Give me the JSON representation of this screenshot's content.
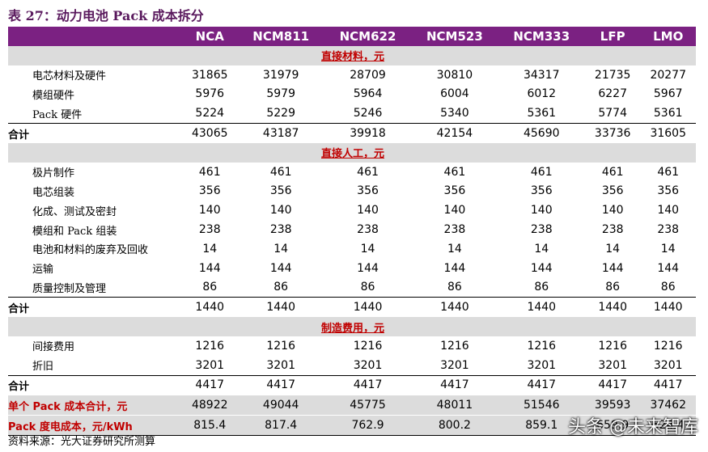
{
  "title": "表 27：动力电池 Pack 成本拆分",
  "table": {
    "columns": [
      "NCA",
      "NCM811",
      "NCM622",
      "NCM523",
      "NCM333",
      "LFP",
      "LMO"
    ],
    "sections": [
      {
        "title": "直接材料，元",
        "rows": [
          {
            "label": "电芯材料及硬件",
            "values": [
              31865,
              31979,
              28709,
              30810,
              34317,
              21735,
              20277
            ]
          },
          {
            "label": "模组硬件",
            "values": [
              5976,
              5979,
              5964,
              6004,
              6012,
              6227,
              5967
            ]
          },
          {
            "label": "Pack 硬件",
            "values": [
              5224,
              5229,
              5246,
              5340,
              5361,
              5774,
              5361
            ]
          }
        ],
        "total": {
          "label": "合计",
          "values": [
            43065,
            43187,
            39918,
            42154,
            45690,
            33736,
            31605
          ]
        }
      },
      {
        "title": "直接人工，元",
        "rows": [
          {
            "label": "极片制作",
            "values": [
              461,
              461,
              461,
              461,
              461,
              461,
              461
            ]
          },
          {
            "label": "电芯组装",
            "values": [
              356,
              356,
              356,
              356,
              356,
              356,
              356
            ]
          },
          {
            "label": "化成、测试及密封",
            "values": [
              140,
              140,
              140,
              140,
              140,
              140,
              140
            ]
          },
          {
            "label": "模组和 Pack 组装",
            "values": [
              238,
              238,
              238,
              238,
              238,
              238,
              238
            ]
          },
          {
            "label": "电池和材料的废弃及回收",
            "values": [
              14,
              14,
              14,
              14,
              14,
              14,
              14
            ]
          },
          {
            "label": "运输",
            "values": [
              144,
              144,
              144,
              144,
              144,
              144,
              144
            ]
          },
          {
            "label": "质量控制及管理",
            "values": [
              86,
              86,
              86,
              86,
              86,
              86,
              86
            ]
          }
        ],
        "total": {
          "label": "合计",
          "values": [
            1440,
            1440,
            1440,
            1440,
            1440,
            1440,
            1440
          ]
        }
      },
      {
        "title": "制造费用，元",
        "rows": [
          {
            "label": "间接费用",
            "values": [
              1216,
              1216,
              1216,
              1216,
              1216,
              1216,
              1216
            ]
          },
          {
            "label": "折旧",
            "values": [
              3201,
              3201,
              3201,
              3201,
              3201,
              3201,
              3201
            ]
          }
        ],
        "total": {
          "label": "合计",
          "values": [
            4417,
            4417,
            4417,
            4417,
            4417,
            4417,
            4417
          ]
        }
      }
    ],
    "summary": [
      {
        "label": "单个 Pack 成本合计，元",
        "values": [
          48922,
          49044,
          45775,
          48011,
          51546,
          39593,
          37462
        ]
      },
      {
        "label": "Pack 度电成本，元/kWh",
        "values": [
          815.4,
          817.4,
          762.9,
          800.2,
          859.1,
          659.9,
          624.4
        ]
      }
    ]
  },
  "source": "资料来源：光大证券研究所测算",
  "watermark": "头条 @未来智库"
}
